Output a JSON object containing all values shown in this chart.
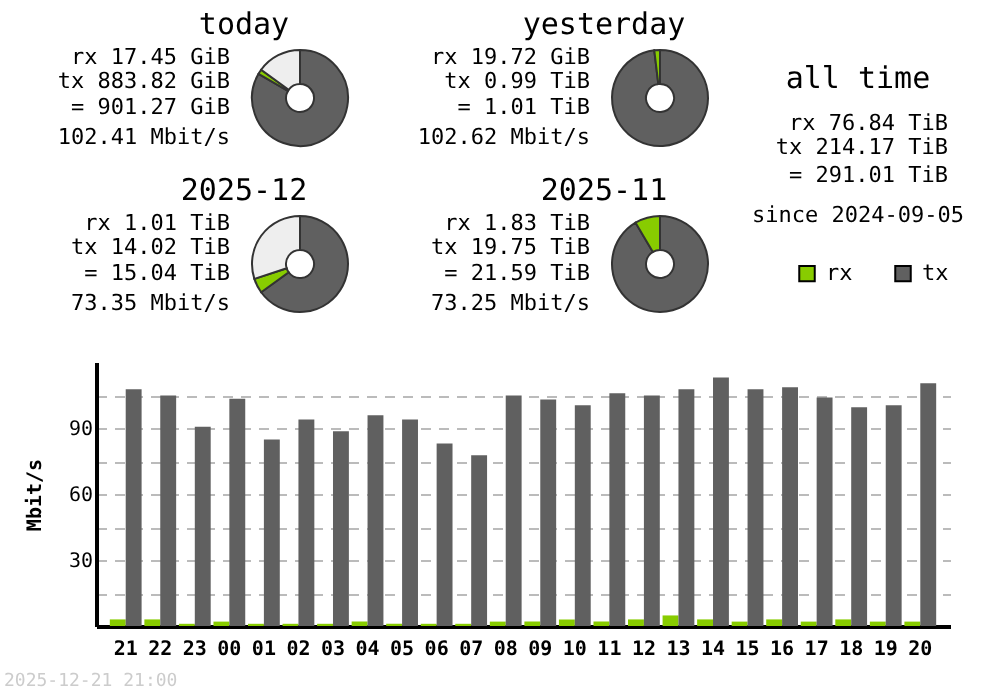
{
  "chart_data": [
    {
      "type": "donut",
      "title": "today",
      "categories": [
        null,
        null,
        null
      ],
      "values": [
        83.4,
        1.6,
        15
      ],
      "colors": [
        "#606060",
        "#88cc00",
        "#eeeeee"
      ],
      "annotations": [
        "rx 17.45 GiB",
        "tx 883.82 GiB",
        "= 901.27 GiB",
        "102.41 Mbit/s"
      ]
    },
    {
      "type": "donut",
      "title": "yesterday",
      "categories": [
        null,
        null,
        null
      ],
      "values": [
        98.1,
        1.9,
        0
      ],
      "colors": [
        "#606060",
        "#88cc00",
        "#eeeeee"
      ],
      "annotations": [
        "rx 19.72 GiB",
        "tx 0.99 TiB",
        "= 1.01 TiB",
        "102.62 Mbit/s"
      ]
    },
    {
      "type": "other",
      "title": "all time",
      "annotations": [
        "rx 76.84 TiB",
        "tx 214.17 TiB",
        "= 291.01 TiB",
        "since 2024-09-05"
      ]
    },
    {
      "type": "donut",
      "title": "2025-12",
      "categories": [
        null,
        null,
        null
      ],
      "values": [
        65,
        5,
        30
      ],
      "colors": [
        "#606060",
        "#88cc00",
        "#eeeeee"
      ],
      "annotations": [
        "rx 1.01 TiB",
        "tx 14.02 TiB",
        "= 15.04 TiB",
        "73.35 Mbit/s"
      ]
    },
    {
      "type": "donut",
      "title": "2025-11",
      "categories": [
        null,
        null,
        null
      ],
      "values": [
        91.5,
        8.5,
        0
      ],
      "colors": [
        "#606060",
        "#88cc00",
        "#eeeeee"
      ],
      "annotations": [
        "rx 1.83 TiB",
        "tx 19.75 TiB",
        "= 21.59 TiB",
        "73.25 Mbit/s"
      ]
    },
    {
      "type": "bar",
      "ylabel": "Mbit/s",
      "categories": [
        "21",
        "22",
        "23",
        "00",
        "01",
        "02",
        "03",
        "04",
        "05",
        "06",
        "07",
        "08",
        "09",
        "10",
        "11",
        "12",
        "13",
        "14",
        "15",
        "16",
        "17",
        "18",
        "19",
        "20"
      ],
      "series": [
        {
          "name": "rx",
          "color": "#88cc00",
          "values": [
            3,
            3,
            1,
            2,
            1,
            1,
            1,
            2,
            1,
            1,
            1,
            2,
            2,
            3,
            2,
            3,
            4.8,
            3,
            2,
            3,
            2,
            3,
            2,
            2
          ]
        },
        {
          "name": "tx",
          "color": "#606060",
          "values": [
            107.6,
            104.8,
            90.6,
            103.3,
            84.8,
            93.9,
            88.5,
            95.8,
            93.9,
            83,
            77.6,
            104.8,
            103,
            100.3,
            105.8,
            104.8,
            107.6,
            113,
            107.6,
            108.5,
            103.9,
            99.4,
            100.3,
            110.3
          ]
        }
      ],
      "ylim": [
        0,
        120
      ],
      "yticks": [
        {
          "value": 15,
          "label": null
        },
        30,
        {
          "value": 45,
          "label": null
        },
        60,
        {
          "value": 75,
          "label": null
        },
        90,
        {
          "value": 105,
          "label": null
        }
      ],
      "grid": "y",
      "legend": "top right",
      "annotations": [
        "2025-12-21 21:00"
      ]
    }
  ]
}
